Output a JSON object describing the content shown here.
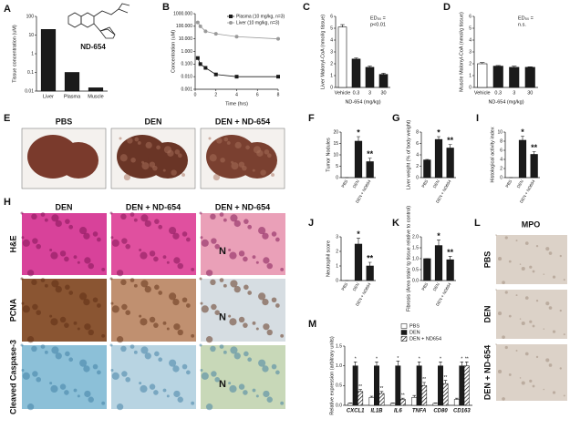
{
  "panel_letters": [
    "A",
    "B",
    "C",
    "D",
    "E",
    "F",
    "G",
    "I",
    "H",
    "J",
    "K",
    "L",
    "M"
  ],
  "compound_label": "ND-654",
  "liver_photos": [
    "PBS",
    "DEN",
    "DEN + ND-654"
  ],
  "histology": {
    "columns": [
      "DEN",
      "DEN + ND-654",
      "DEN + ND-654"
    ],
    "rows": [
      "H&E",
      "PCNA",
      "Cleaved Caspase-3"
    ],
    "necrosis_marks": [
      "N",
      "N",
      "N"
    ]
  },
  "mpo": {
    "title": "MPO",
    "rows": [
      "PBS",
      "DEN",
      "DEN + ND-654"
    ]
  },
  "chart_data": [
    {
      "type": "bar",
      "scale": "log",
      "ylabel": "Tissue concentration (uM)",
      "categories": [
        "Liver",
        "Plasma",
        "Muscle"
      ],
      "values": [
        20,
        0.1,
        0.015
      ],
      "color": "#1a1a1a",
      "ylim": [
        0.01,
        100
      ],
      "yticks": [
        0.01,
        0.1,
        1,
        10,
        100
      ]
    },
    {
      "type": "line",
      "scale": "log",
      "xlabel": "Time (hrs)",
      "ylabel": "Concentration (uM)",
      "x": [
        0.25,
        0.5,
        1,
        2,
        4,
        8
      ],
      "series": [
        {
          "name": "Plasma (10 mg/kg, n=3)",
          "color": "#1a1a1a",
          "marker": "square",
          "values": [
            0.3,
            0.1,
            0.05,
            0.015,
            0.01,
            0.01
          ]
        },
        {
          "name": "Liver (10 mg/kg, n=3)",
          "color": "#9a9a9a",
          "marker": "circle",
          "values": [
            200,
            100,
            40,
            25,
            15,
            10
          ]
        }
      ],
      "xlim": [
        0,
        8
      ],
      "xticks": [
        0,
        2,
        4,
        6,
        8
      ],
      "ylim": [
        0.001,
        1000
      ],
      "yticks": [
        {
          "value": 0.001,
          "label": "0.001"
        },
        {
          "value": 0.01,
          "label": "0.010"
        },
        {
          "value": 0.1,
          "label": "0.100"
        },
        {
          "value": 1,
          "label": "1.000"
        },
        {
          "value": 10,
          "label": "10.000"
        },
        {
          "value": 100,
          "label": "100.000"
        },
        {
          "value": 1000,
          "label": "1000.000"
        }
      ],
      "legend": "upper right"
    },
    {
      "type": "bar",
      "ylabel": "Liver Malonyl-CoA (nmol/g tissue)",
      "xlabel": "ND-654 (mg/kg)",
      "categories": [
        "Vehicle",
        "0.3",
        "3",
        "30"
      ],
      "values": [
        5.1,
        2.4,
        1.7,
        1.1
      ],
      "errors": [
        0.2,
        0.1,
        0.1,
        0.1
      ],
      "colors": [
        "#ffffff",
        "#1a1a1a",
        "#1a1a1a",
        "#1a1a1a"
      ],
      "ylim": [
        0,
        6
      ],
      "yticks": [
        0,
        1,
        2,
        3,
        4,
        5,
        6
      ],
      "annotation": [
        "ED₅₀ =",
        "p<0.01"
      ]
    },
    {
      "type": "bar",
      "ylabel": "Muscle Malonyl-CoA (nmol/g tissue)",
      "xlabel": "ND-654 (mg/kg)",
      "categories": [
        "Vehicle",
        "0.3",
        "3",
        "30"
      ],
      "values": [
        2.0,
        1.8,
        1.7,
        1.7
      ],
      "errors": [
        0.1,
        0.05,
        0.1,
        0.05
      ],
      "colors": [
        "#ffffff",
        "#1a1a1a",
        "#1a1a1a",
        "#1a1a1a"
      ],
      "ylim": [
        0,
        6
      ],
      "yticks": [
        0,
        1,
        2,
        3,
        4,
        5,
        6
      ],
      "annotation": [
        "ED₅₀ =",
        "n.s."
      ]
    },
    {
      "type": "bar",
      "ylabel": "Tumor Nodules",
      "categories": [
        "PBS",
        "DEN",
        "DEN + ND654"
      ],
      "values": [
        0,
        16,
        7
      ],
      "errors": [
        0,
        2,
        1.5
      ],
      "significance": [
        null,
        "*",
        "**"
      ],
      "color": "#1a1a1a",
      "ylim": [
        0,
        20
      ],
      "yticks": [
        0,
        5,
        10,
        15,
        20
      ]
    },
    {
      "type": "bar",
      "ylabel": "Liver weight (% of body weight)",
      "categories": [
        "PBS",
        "DEN",
        "DEN + ND654"
      ],
      "values": [
        3.1,
        6.7,
        5.2
      ],
      "errors": [
        0.1,
        0.5,
        0.6
      ],
      "significance": [
        null,
        "*",
        "**"
      ],
      "color": "#1a1a1a",
      "ylim": [
        0,
        8
      ],
      "yticks": [
        0,
        2,
        4,
        6,
        8
      ]
    },
    {
      "type": "bar",
      "ylabel": "Histological activity index",
      "categories": [
        "PBS",
        "DEN",
        "DEN + ND654"
      ],
      "values": [
        0,
        8.2,
        5.1
      ],
      "errors": [
        0,
        0.9,
        0.6
      ],
      "significance": [
        null,
        "*",
        "**"
      ],
      "color": "#1a1a1a",
      "ylim": [
        0,
        10
      ],
      "yticks": [
        0,
        2,
        4,
        6,
        8,
        10
      ]
    },
    {
      "type": "bar",
      "ylabel": "Neutrophil score",
      "categories": [
        "PBS",
        "DEN",
        "DEN + ND654"
      ],
      "values": [
        0,
        2.5,
        1.0
      ],
      "errors": [
        0,
        0.4,
        0.25
      ],
      "significance": [
        null,
        "*",
        "**"
      ],
      "color": "#1a1a1a",
      "ylim": [
        0,
        3
      ],
      "yticks": [
        0,
        1,
        2,
        3
      ]
    },
    {
      "type": "bar",
      "ylabel": "Fibrosis (Area stain/ tg tissue relative to control)",
      "categories": [
        "PBS",
        "DEN",
        "DEN + ND654"
      ],
      "values": [
        1.0,
        1.6,
        0.95
      ],
      "errors": [
        0,
        0.25,
        0.15
      ],
      "significance": [
        null,
        "*",
        "**"
      ],
      "color": "#1a1a1a",
      "ylim": [
        0,
        2
      ],
      "yticks": [
        {
          "value": 0,
          "label": "0.0"
        },
        {
          "value": 0.5,
          "label": "0.5"
        },
        {
          "value": 1,
          "label": "1.0"
        },
        {
          "value": 1.5,
          "label": "1.5"
        },
        {
          "value": 2,
          "label": "2.0"
        }
      ]
    },
    {
      "type": "grouped_bar",
      "ylabel": "Relative expression (arbitrary units)",
      "categories": [
        "CXCL1",
        "IL1B",
        "IL6",
        "TNFA",
        "CD80",
        "CD163"
      ],
      "series": [
        {
          "name": "PBS",
          "color": "#ffffff",
          "values": [
            0.05,
            0.2,
            0.05,
            0.2,
            0.05,
            0.15
          ],
          "errors": [
            0.01,
            0.03,
            0.01,
            0.05,
            0.01,
            0.03
          ]
        },
        {
          "name": "DEN",
          "color": "#1a1a1a",
          "values": [
            1,
            1,
            1,
            1,
            1,
            1
          ],
          "errors": [
            0.1,
            0.1,
            0.12,
            0.1,
            0.1,
            0.1
          ],
          "significance": [
            "*",
            "*",
            "*",
            "*",
            "*",
            "*"
          ]
        },
        {
          "name": "DEN + ND654",
          "color": "#ffffff",
          "pattern": "diagonal",
          "values": [
            0.35,
            0.3,
            0.15,
            0.5,
            0.55,
            1.0
          ],
          "errors": [
            0.05,
            0.05,
            0.03,
            0.08,
            0.08,
            0.1
          ],
          "significance": [
            "**",
            "**",
            "**",
            "**",
            "**",
            "**"
          ]
        }
      ],
      "ylim": [
        0,
        1.5
      ],
      "yticks": [
        {
          "value": 0,
          "label": "0.0"
        },
        {
          "value": 0.5,
          "label": "0.5"
        },
        {
          "value": 1,
          "label": "1.0"
        },
        {
          "value": 1.5,
          "label": "1.5"
        }
      ],
      "legend": "upper right"
    }
  ]
}
